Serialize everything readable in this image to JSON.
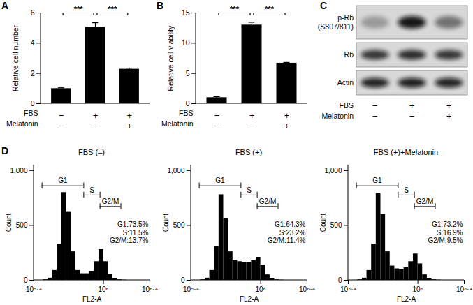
{
  "chart_data": [
    {
      "panel": "A",
      "type": "bar",
      "categories": [
        null,
        null,
        null
      ],
      "values": [
        1.0,
        5.05,
        2.28
      ],
      "errors": [
        0.05,
        0.3,
        0.07
      ],
      "color": "#000000",
      "ylabel": "Relative cell number",
      "ylim": [
        0,
        6
      ],
      "yticks": [
        0,
        2,
        4,
        6
      ],
      "treatment_rows": [
        {
          "name": "FBS",
          "labels": [
            "−",
            "+",
            "+"
          ]
        },
        {
          "name": "Melatonin",
          "labels": [
            "−",
            "−",
            "+"
          ]
        }
      ],
      "significance": [
        {
          "from": 0,
          "to": 1,
          "label": "***"
        },
        {
          "from": 1,
          "to": 2,
          "label": "***"
        }
      ]
    },
    {
      "panel": "B",
      "type": "bar",
      "categories": [
        null,
        null,
        null
      ],
      "values": [
        1.0,
        13.0,
        6.7
      ],
      "errors": [
        0.15,
        0.45,
        0.12
      ],
      "color": "#000000",
      "ylabel": "Relative cell viability",
      "ylim": [
        0,
        15
      ],
      "yticks": [
        0,
        5,
        10,
        15
      ],
      "treatment_rows": [
        {
          "name": "FBS",
          "labels": [
            "−",
            "+",
            "+"
          ]
        },
        {
          "name": "Melatonin",
          "labels": [
            "−",
            "−",
            "+"
          ]
        }
      ],
      "significance": [
        {
          "from": 0,
          "to": 1,
          "label": "***"
        },
        {
          "from": 1,
          "to": 2,
          "label": "***"
        }
      ]
    },
    {
      "panel": "D",
      "type": "histogram",
      "title": "FBS (–)",
      "xlabel": "FL2-A",
      "ylabel": "Count",
      "log": "x",
      "color": "#000000",
      "bins": [
        251189,
        275423,
        301995,
        331131,
        363078,
        398107,
        436516,
        478630,
        524807,
        575440,
        630957,
        691831,
        758578,
        831764,
        912011,
        1000000,
        1096478,
        1202264,
        1318257,
        1445440,
        1584893,
        1737801,
        1905461,
        2089296,
        2290868,
        2511886
      ],
      "values": [
        0,
        0,
        5,
        20,
        90,
        330,
        800,
        620,
        260,
        90,
        60,
        60,
        80,
        170,
        280,
        170,
        55,
        15,
        5,
        2,
        0,
        0,
        0,
        0,
        0
      ],
      "xlim": [
        251189,
        2511886
      ],
      "xticks": [
        {
          "value": 251189,
          "label": "10⁵·⁴"
        },
        {
          "value": 1000000,
          "label": "10⁶"
        },
        {
          "value": 2511886,
          "label": "10⁶·⁴"
        }
      ],
      "ylim": [
        0,
        1050
      ],
      "yticks": [
        0,
        500,
        {
          "value": 1000,
          "label": "1,000"
        }
      ],
      "gates": [
        {
          "name": "G1",
          "range": [
            295121,
            676083
          ]
        },
        {
          "name": "S",
          "range": [
            676083,
            933254
          ]
        },
        {
          "name": "G2/M",
          "range": [
            933254,
            1412538
          ]
        }
      ],
      "annotations": [
        "G1:73.5%",
        "S:11.5%",
        "G2/M:13.7%"
      ]
    },
    {
      "type": "histogram",
      "title": "FBS (+)",
      "xlabel": "FL2-A",
      "ylabel": "Count",
      "log": "x",
      "color": "#000000",
      "bins": [
        251189,
        275423,
        301995,
        331131,
        363078,
        398107,
        436516,
        478630,
        524807,
        575440,
        630957,
        691831,
        758578,
        831764,
        912011,
        1000000,
        1096478,
        1202264,
        1318257,
        1445440,
        1584893,
        1737801,
        1905461,
        2089296,
        2290868,
        2511886
      ],
      "values": [
        0,
        0,
        5,
        20,
        90,
        310,
        780,
        560,
        260,
        180,
        170,
        165,
        165,
        180,
        210,
        140,
        50,
        15,
        5,
        2,
        0,
        0,
        0,
        0,
        0
      ],
      "xlim": [
        251189,
        2511886
      ],
      "xticks": [
        {
          "value": 251189,
          "label": "10⁵·⁴"
        },
        {
          "value": 1000000,
          "label": "10⁶"
        },
        {
          "value": 2511886,
          "label": "10⁶·⁴"
        }
      ],
      "ylim": [
        0,
        1050
      ],
      "yticks": [
        0,
        500,
        {
          "value": 1000,
          "label": "1,000"
        }
      ],
      "gates": [
        {
          "name": "G1",
          "range": [
            295121,
            676083
          ]
        },
        {
          "name": "S",
          "range": [
            676083,
            933254
          ]
        },
        {
          "name": "G2/M",
          "range": [
            933254,
            1412538
          ]
        }
      ],
      "annotations": [
        "G1:64.3%",
        "S:23.2%",
        "G2/M:11.4%"
      ]
    },
    {
      "type": "histogram",
      "title": "FBS (+)+Melatonin",
      "xlabel": "FL2-A",
      "ylabel": "Count",
      "log": "x",
      "color": "#000000",
      "bins": [
        251189,
        275423,
        301995,
        331131,
        363078,
        398107,
        436516,
        478630,
        524807,
        575440,
        630957,
        691831,
        758578,
        831764,
        912011,
        1000000,
        1096478,
        1202264,
        1318257,
        1445440,
        1584893,
        1737801,
        1905461,
        2089296,
        2290868,
        2511886
      ],
      "values": [
        0,
        0,
        5,
        20,
        90,
        330,
        790,
        600,
        260,
        130,
        105,
        100,
        115,
        170,
        240,
        150,
        50,
        15,
        5,
        2,
        0,
        0,
        0,
        0,
        0
      ],
      "xlim": [
        251189,
        2511886
      ],
      "xticks": [
        {
          "value": 251189,
          "label": "10⁵·⁴"
        },
        {
          "value": 1000000,
          "label": "10⁶"
        },
        {
          "value": 2511886,
          "label": "10⁶·⁴"
        }
      ],
      "ylim": [
        0,
        1050
      ],
      "yticks": [
        0,
        500,
        {
          "value": 1000,
          "label": "1,000"
        }
      ],
      "gates": [
        {
          "name": "G1",
          "range": [
            295121,
            676083
          ]
        },
        {
          "name": "S",
          "range": [
            676083,
            933254
          ]
        },
        {
          "name": "G2/M",
          "range": [
            933254,
            1412538
          ]
        }
      ],
      "annotations": [
        "G1:73.2%",
        "S:16.9%",
        "G2/M:9.5%"
      ]
    }
  ],
  "blot": {
    "panel": "C",
    "rows": [
      {
        "label": [
          "p-Rb",
          "(S807/811)"
        ],
        "intensity": [
          0.3,
          0.95,
          0.5
        ]
      },
      {
        "label": [
          "Rb"
        ],
        "intensity": [
          0.8,
          0.85,
          0.8
        ]
      },
      {
        "label": [
          "Actin"
        ],
        "intensity": [
          0.9,
          0.92,
          0.9
        ]
      }
    ],
    "treatment_rows": [
      {
        "name": "FBS",
        "labels": [
          "−",
          "+",
          "+"
        ]
      },
      {
        "name": "Melatonin",
        "labels": [
          "−",
          "−",
          "+"
        ]
      }
    ]
  }
}
